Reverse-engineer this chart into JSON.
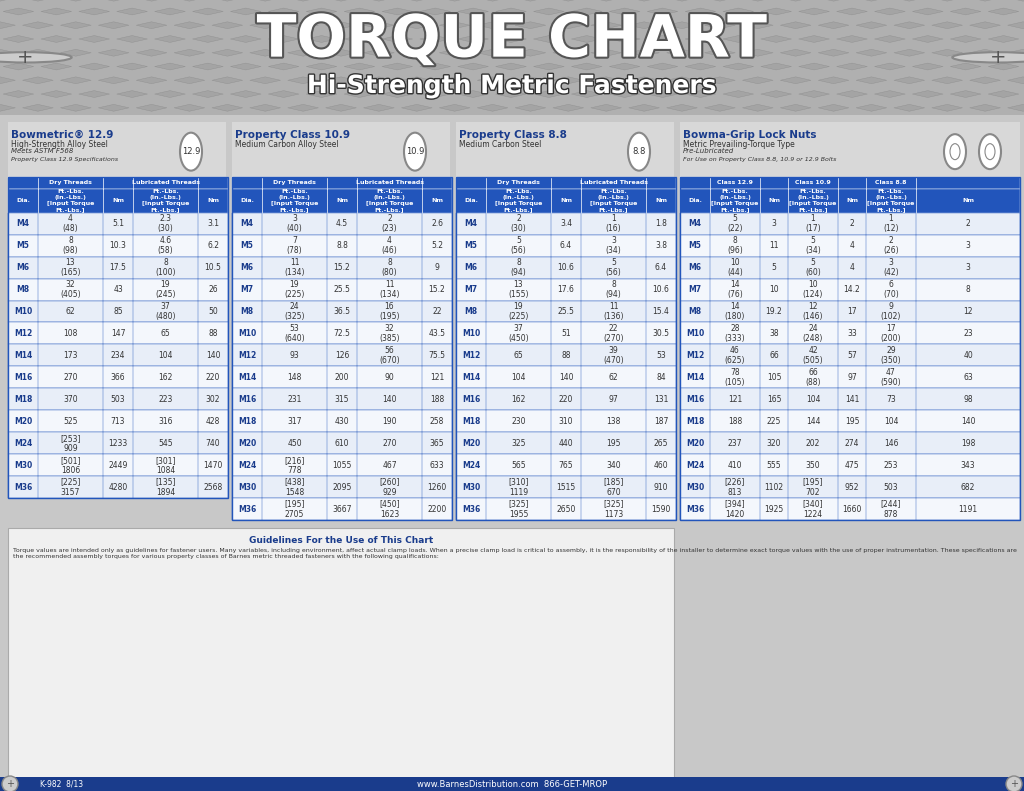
{
  "title": "TORQUE CHART",
  "subtitle": "Hi-Strength Metric Fasteners",
  "bg_header_color": "#7a7a7a",
  "bg_main_color": "#c8c8c8",
  "blue_header": "#1a3a8a",
  "light_blue_header": "#2255bb",
  "row_alt1": "#e8e8e8",
  "row_alt2": "#ffffff",
  "table_border": "#2255bb",
  "sections": [
    {
      "title": "Bowmetric® 12.9",
      "subtitle1": "High-Strength Alloy Steel",
      "subtitle2": "Meets ASTM F568",
      "subtitle3": "Property Class 12.9 Specifications",
      "class": "12.9",
      "col_headers": [
        "Dia.",
        "Dry Threads\nFt.-Lbs.\n(In.-Lbs.)\n[Input Torque\nFt.-Lbs.]",
        "Nm",
        "Lubricated Threads\nFt.-Lbs.\n(In.-Lbs.)\n[Input Torque\nFt.-Lbs.]",
        "Nm"
      ],
      "rows": [
        [
          "M4",
          "4\n(48)",
          "5.1",
          "2.3\n(30)",
          "3.1"
        ],
        [
          "M5",
          "8\n(98)",
          "10.3",
          "4.6\n(58)",
          "6.2"
        ],
        [
          "M6",
          "13\n(165)",
          "17.5",
          "8\n(100)",
          "10.5"
        ],
        [
          "M8",
          "32\n(405)",
          "43",
          "19\n(245)",
          "26"
        ],
        [
          "M10",
          "62",
          "85",
          "37\n(480)",
          "50"
        ],
        [
          "M12",
          "108",
          "147",
          "65",
          "88"
        ],
        [
          "M14",
          "173",
          "234",
          "104",
          "140"
        ],
        [
          "M16",
          "270",
          "366",
          "162",
          "220"
        ],
        [
          "M18",
          "370",
          "503",
          "223",
          "302"
        ],
        [
          "M20",
          "525",
          "713",
          "316",
          "428"
        ],
        [
          "M24",
          "[253]\n909",
          "1233",
          "545",
          "740"
        ],
        [
          "M30",
          "[501]\n1806",
          "2449",
          "[301]\n1084",
          "1470"
        ],
        [
          "M36",
          "[225]\n3157",
          "4280",
          "[135]\n1894",
          "2568"
        ]
      ]
    },
    {
      "title": "Property Class 10.9",
      "subtitle1": "Medium Carbon Alloy Steel",
      "class": "10.9",
      "rows": [
        [
          "M4",
          "3\n(40)",
          "4.5",
          "2\n(23)",
          "2.6"
        ],
        [
          "M5",
          "7\n(78)",
          "8.8",
          "4\n(46)",
          "5.2"
        ],
        [
          "M6",
          "11\n(134)",
          "15.2",
          "8\n(80)",
          "9"
        ],
        [
          "M7",
          "19\n(225)",
          "25.5",
          "11\n(134)",
          "15.2"
        ],
        [
          "M8",
          "24\n(325)",
          "36.5",
          "16\n(195)",
          "22"
        ],
        [
          "M10",
          "53\n(640)",
          "72.5",
          "32\n(385)",
          "43.5"
        ],
        [
          "M12",
          "93",
          "126",
          "56\n(670)",
          "75.5"
        ],
        [
          "M14",
          "148",
          "200",
          "90",
          "121"
        ],
        [
          "M16",
          "231",
          "315",
          "140",
          "188"
        ],
        [
          "M18",
          "317",
          "430",
          "190",
          "258"
        ],
        [
          "M20",
          "450",
          "610",
          "270",
          "365"
        ],
        [
          "M24",
          "[216]\n778",
          "1055",
          "467",
          "633"
        ],
        [
          "M30",
          "[438]\n1548",
          "2095",
          "[260]\n929",
          "1260"
        ],
        [
          "M36",
          "[195]\n2705",
          "3667",
          "[450]\n1623",
          "2200"
        ]
      ]
    },
    {
      "title": "Property Class 8.8",
      "subtitle1": "Medium Carbon Steel",
      "class": "8.8",
      "rows": [
        [
          "M4",
          "2\n(30)",
          "3.4",
          "1\n(16)",
          "1.8"
        ],
        [
          "M5",
          "5\n(56)",
          "6.4",
          "3\n(34)",
          "3.8"
        ],
        [
          "M6",
          "8\n(94)",
          "10.6",
          "5\n(56)",
          "6.4"
        ],
        [
          "M7",
          "13\n(155)",
          "17.6",
          "8\n(94)",
          "10.6"
        ],
        [
          "M8",
          "19\n(225)",
          "25.5",
          "11\n(136)",
          "15.4"
        ],
        [
          "M10",
          "37\n(450)",
          "51",
          "22\n(270)",
          "30.5"
        ],
        [
          "M12",
          "65",
          "88",
          "39\n(470)",
          "53"
        ],
        [
          "M14",
          "104",
          "140",
          "62",
          "84"
        ],
        [
          "M16",
          "162",
          "220",
          "97",
          "131"
        ],
        [
          "M18",
          "230",
          "310",
          "138",
          "187"
        ],
        [
          "M20",
          "325",
          "440",
          "195",
          "265"
        ],
        [
          "M24",
          "565",
          "765",
          "340",
          "460"
        ],
        [
          "M30",
          "[310]\n1119",
          "1515",
          "[185]\n670",
          "910"
        ],
        [
          "M36",
          "[325]\n1955",
          "2650",
          "[325]\n1173",
          "1590"
        ]
      ]
    },
    {
      "title": "Bowma-Grip Lock Nuts",
      "subtitle1": "Metric Prevailing-Torque Type",
      "subtitle2": "Pre-Lubricated",
      "subtitle3": "For Use on Property Class\n8.8, 10.9 or 12.9 Bolts",
      "rows": [
        [
          "M4",
          "5\n(22)",
          "3",
          "1\n(17)",
          "2",
          "1\n(12)",
          "2"
        ],
        [
          "M5",
          "8\n(96)",
          "11",
          "5\n(34)",
          "4",
          "2\n(26)",
          "3"
        ],
        [
          "M6",
          "10\n(44)",
          "5",
          "5\n(60)",
          "4",
          "3\n(42)",
          "3"
        ],
        [
          "M7",
          "14\n(76)",
          "10",
          "10\n(124)",
          "14.2",
          "6\n(70)",
          "8"
        ],
        [
          "M8",
          "14\n(180)",
          "19.2",
          "12\n(146)",
          "17",
          "9\n(102)",
          "12"
        ],
        [
          "M10",
          "28\n(333)",
          "38",
          "24\n(248)",
          "33",
          "17\n(200)",
          "23"
        ],
        [
          "M12",
          "46\n(625)",
          "66",
          "42\n(505)",
          "57",
          "29\n(350)",
          "40"
        ],
        [
          "M14",
          "78\n(105)",
          "105",
          "66\n(88)",
          "97",
          "47\n(590)",
          "63"
        ],
        [
          "M16",
          "121",
          "165",
          "104",
          "141",
          "73",
          "98"
        ],
        [
          "M18",
          "188",
          "225",
          "144",
          "195",
          "104",
          "140"
        ],
        [
          "M20",
          "237",
          "320",
          "202",
          "274",
          "146",
          "198"
        ],
        [
          "M24",
          "410",
          "555",
          "350",
          "475",
          "253",
          "343"
        ],
        [
          "M30",
          "[226]\n813",
          "1102",
          "[195]\n702",
          "952",
          "503",
          "682"
        ],
        [
          "M36",
          "[394]\n1420",
          "1925",
          "[340]\n1224",
          "1660",
          "[244]\n878",
          "1191"
        ]
      ]
    }
  ],
  "guidelines_title": "Guidelines For the Use of This Chart",
  "guidelines_text": "Torque values are intended only as guidelines for fastener users. Many variables, including environment, affect actual clamp loads. When a precise clamp load is critical to assembly, it is the responsibility of the installer to determine exact torque values with the use of proper instrumentation. These specifications are the recommended assembly torques for various property classes of Barnes metric threaded fasteners with the following qualifications:",
  "footer_url": "www.BarnesDistribution.com  866-GET-MROP",
  "footer_code": "K-982  8/13"
}
